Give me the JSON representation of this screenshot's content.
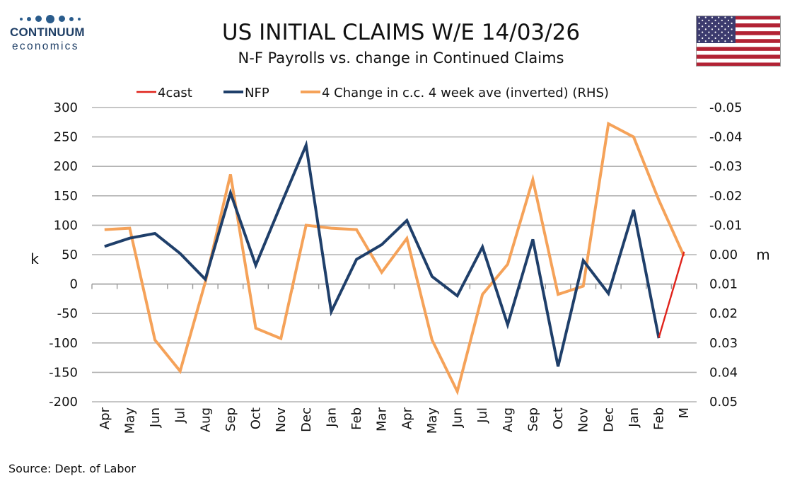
{
  "logo": {
    "name": "CONTINUUM",
    "sub": "economics"
  },
  "source": "Source: Dept. of Labor",
  "colors": {
    "forecast": "#e0231b",
    "nfp": "#1f3f6a",
    "continued_claims": "#f5a259",
    "grid": "#b3b3b3",
    "logo": "#2a5c8c"
  },
  "chart_data": {
    "type": "line",
    "title": "US INITIAL CLAIMS W/E 14/03/26",
    "subtitle": "N-F Payrolls vs. change in Continued Claims",
    "ylabel": "k",
    "ylabel_right": "m",
    "categories": [
      "Apr",
      "May",
      "Jun",
      "Jul",
      "Aug",
      "Sep",
      "Oct",
      "Nov",
      "Dec",
      "Jan",
      "Feb",
      "Mar",
      "Apr",
      "May",
      "Jun",
      "Jul",
      "Aug",
      "Sep",
      "Oct",
      "Nov",
      "Dec",
      "Jan",
      "Feb",
      "M"
    ],
    "ylim": [
      -200,
      300
    ],
    "yticks": [
      300,
      250,
      200,
      150,
      100,
      50,
      0,
      -50,
      -100,
      -150,
      -200
    ],
    "ytick_labels": [
      "300",
      "250",
      "200",
      "150",
      "100",
      "50",
      "0",
      "-50",
      "-100",
      "-150",
      "-200"
    ],
    "y2lim": [
      0.05,
      -0.05
    ],
    "y2ticks": [
      -0.05,
      -0.04,
      -0.03,
      -0.02,
      -0.01,
      0.0,
      0.01,
      0.02,
      0.03,
      0.04,
      0.05
    ],
    "y2tick_labels": [
      "-0.05",
      "-0.04",
      "-0.03",
      "-0.02",
      "-0.01",
      "0.00",
      "0.01",
      "0.02",
      "0.03",
      "0.04",
      "0.05"
    ],
    "grid": true,
    "legend_position": "top",
    "series": [
      {
        "name": "4cast",
        "axis": "left",
        "color": "#e0231b",
        "values": [
          null,
          null,
          null,
          null,
          null,
          null,
          null,
          null,
          null,
          null,
          null,
          null,
          null,
          null,
          null,
          null,
          null,
          null,
          null,
          null,
          null,
          null,
          -91,
          55
        ]
      },
      {
        "name": "NFP",
        "axis": "left",
        "color": "#1f3f6a",
        "values": [
          64,
          78,
          86,
          52,
          8,
          155,
          32,
          135,
          236,
          -47,
          42,
          67,
          108,
          13,
          -20,
          63,
          -69,
          76,
          -140,
          40,
          -16,
          126,
          -92,
          null
        ]
      },
      {
        "name": "4 Change in c.c. 4 week ave (inverted) (RHS)",
        "axis": "right",
        "color": "#f5a259",
        "values": [
          -0.0085,
          -0.009,
          0.029,
          0.0396,
          0.0093,
          -0.0273,
          0.025,
          0.0285,
          -0.01,
          -0.009,
          -0.0085,
          0.006,
          -0.0055,
          0.029,
          0.0465,
          0.0135,
          0.0033,
          -0.0255,
          0.0135,
          0.0107,
          -0.0445,
          -0.04,
          -0.0185,
          0.0005
        ]
      }
    ]
  }
}
